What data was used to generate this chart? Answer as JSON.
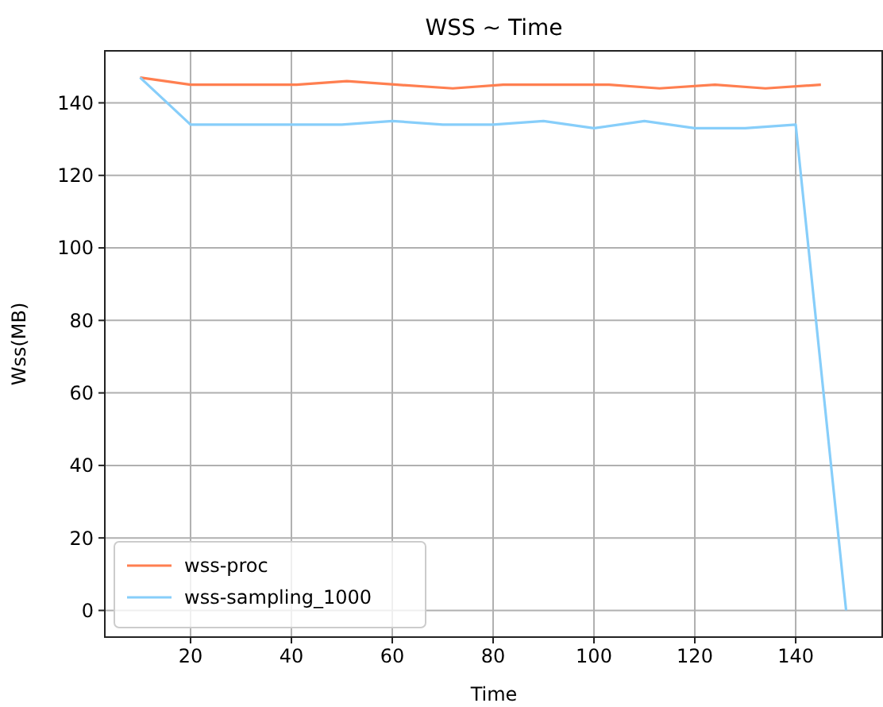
{
  "chart_data": {
    "type": "line",
    "title": "WSS ~ Time",
    "xlabel": "Time",
    "ylabel": "Wss(MB)",
    "xlim": [
      3,
      157
    ],
    "xticks": [
      20,
      40,
      60,
      80,
      100,
      120,
      140
    ],
    "ylim": [
      -7.35,
      154.35
    ],
    "yticks": [
      0,
      20,
      40,
      60,
      80,
      100,
      120,
      140
    ],
    "grid": true,
    "legend": "bottom left",
    "series": [
      {
        "name": "wss-proc",
        "color": "#ff7f50",
        "x": [
          10,
          20,
          31,
          41,
          51,
          61,
          72,
          82,
          92,
          103,
          113,
          124,
          134,
          145
        ],
        "values": [
          147,
          145,
          145,
          145,
          146,
          145,
          144,
          145,
          145,
          145,
          144,
          145,
          144,
          145
        ]
      },
      {
        "name": "wss-sampling_1000",
        "color": "#87cefa",
        "x": [
          10,
          20,
          30,
          40,
          50,
          60,
          70,
          80,
          90,
          100,
          110,
          120,
          130,
          140,
          150
        ],
        "values": [
          147,
          134,
          134,
          134,
          134,
          135,
          134,
          134,
          135,
          133,
          135,
          133,
          133,
          134,
          0
        ]
      }
    ]
  }
}
